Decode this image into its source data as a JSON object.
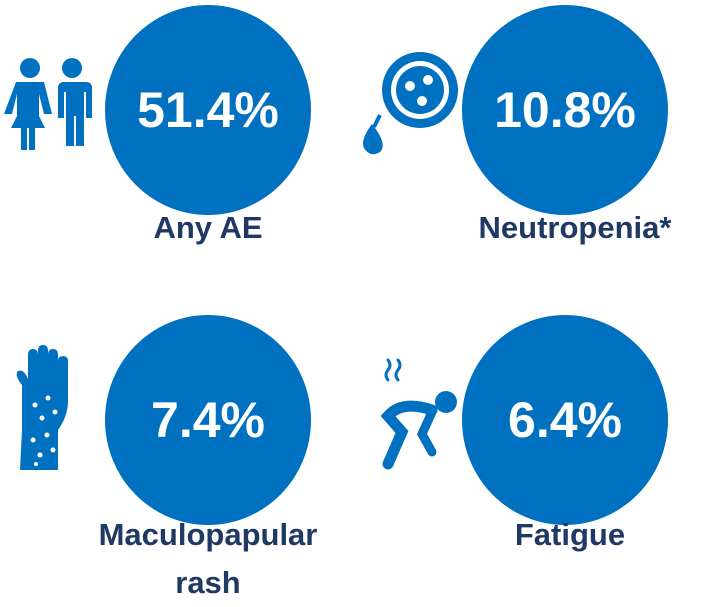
{
  "items": [
    {
      "value": "51.4%",
      "label": "Any AE"
    },
    {
      "value": "10.8%",
      "label": "Neutropenia*"
    },
    {
      "value": "7.4%",
      "label": "Maculopapular rash"
    },
    {
      "value": "6.4%",
      "label": "Fatigue"
    }
  ]
}
